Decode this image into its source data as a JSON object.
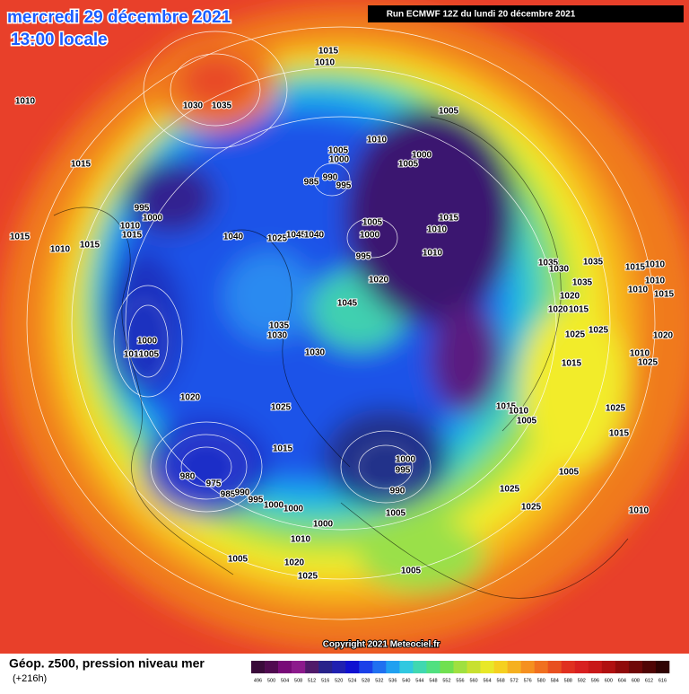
{
  "header": {
    "date": "mercredi 29 décembre 2021",
    "time": "13:00 locale",
    "run": "Run ECMWF 12Z du lundi 20 décembre 2021"
  },
  "footer": {
    "copyright": "Copyright 2021 Meteociel.fr",
    "field": "Géop. z500, pression niveau mer",
    "lead": "(+216h)"
  },
  "scale": {
    "values": [
      496,
      500,
      504,
      508,
      512,
      516,
      520,
      524,
      528,
      532,
      536,
      540,
      544,
      548,
      552,
      556,
      560,
      564,
      568,
      572,
      576,
      580,
      584,
      588,
      592,
      596,
      600,
      604,
      608,
      612,
      616
    ],
    "colors": [
      "#3a0a3a",
      "#500a50",
      "#780a78",
      "#8c1a8c",
      "#501a6a",
      "#28228a",
      "#2020b0",
      "#1010d0",
      "#1a40e8",
      "#2070f0",
      "#20a0f0",
      "#30c8e0",
      "#40d8b0",
      "#50e080",
      "#70e050",
      "#a0e040",
      "#c8e030",
      "#e8e828",
      "#f5d020",
      "#f5b020",
      "#f59020",
      "#f07020",
      "#e85020",
      "#e03020",
      "#d82020",
      "#c81818",
      "#b01010",
      "#900a0a",
      "#700808",
      "#500505",
      "#300303"
    ]
  },
  "pressure_labels": [
    1015,
    1010,
    1010,
    1030,
    1035,
    1015,
    995,
    1000,
    1010,
    1015,
    1015,
    1010,
    1005,
    985,
    990,
    995,
    1000,
    1005,
    1000,
    1010,
    1005,
    1005,
    1000,
    1015,
    1010,
    1010,
    995,
    1040,
    1025,
    1045,
    1040,
    1015,
    1020,
    1045,
    1035,
    1030,
    1030,
    1000,
    1010,
    1005,
    1020,
    1025,
    1015,
    980,
    975,
    985,
    990,
    995,
    1000,
    1000,
    1000,
    995,
    990,
    1005,
    1000,
    1010,
    1005,
    1020,
    1025,
    1005,
    1015,
    1010,
    1005,
    1025,
    1025,
    1035,
    1035,
    1030,
    1035,
    1020,
    1020,
    1015,
    1025,
    1025,
    1015,
    1015,
    1010,
    1010,
    1010,
    1015,
    1020,
    1010,
    1025,
    1025,
    1015,
    1005,
    1010
  ]
}
